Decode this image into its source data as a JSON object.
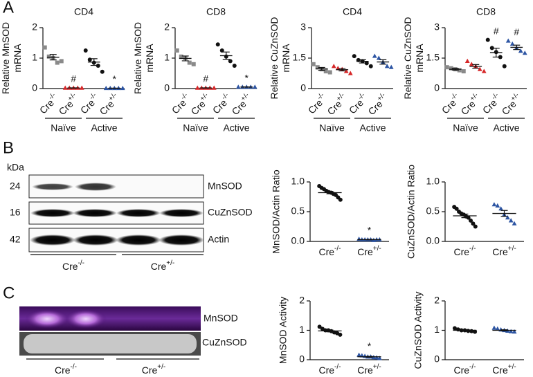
{
  "panels": [
    "A",
    "B",
    "C"
  ],
  "blot": {
    "unit": "kDa",
    "sizes": [
      "24",
      "16",
      "42"
    ],
    "names": [
      "MnSOD",
      "CuZnSOD",
      "Actin"
    ],
    "lanes": [
      "Cre-/-",
      "Cre+/-"
    ]
  },
  "zymogram": {
    "names": [
      "MnSOD",
      "CuZnSOD"
    ],
    "lanes": [
      "Cre-/-",
      "Cre+/-"
    ]
  },
  "chart_data": [
    {
      "type": "dotplot",
      "title": "CD4",
      "ylabel": [
        "Relative MnSOD",
        "mRNA"
      ],
      "categories": [
        "Cre-/-",
        "Cre+/-",
        "Cre-/-",
        "Cre+/-"
      ],
      "groups": [
        "Naïve",
        "Active"
      ],
      "colors": [
        "#8a8a8a",
        "#d62728",
        "#111111",
        "#2d55a3"
      ],
      "markers": [
        "square",
        "triangle",
        "circle",
        "triangle"
      ],
      "points": [
        [
          1.35,
          1.05,
          1.0,
          0.85,
          0.9
        ],
        [
          0.02,
          0.02,
          0.02,
          0.02,
          0.02
        ],
        [
          1.25,
          0.95,
          0.85,
          0.75,
          0.55
        ],
        [
          0.01,
          0.01,
          0.01,
          0.01,
          0.01
        ]
      ],
      "means": [
        1.03,
        0.02,
        0.87,
        0.01
      ],
      "sems": [
        0.09,
        0.003,
        0.11,
        0.002
      ],
      "annotations": [
        null,
        "#",
        null,
        "*"
      ],
      "ylim": [
        0,
        2
      ],
      "yticks": [
        0,
        1,
        2
      ]
    },
    {
      "type": "dotplot",
      "title": "CD8",
      "ylabel": [
        "Relative MnSOD",
        "mRNA"
      ],
      "categories": [
        "Cre-/-",
        "Cre+/-",
        "Cre-/-",
        "Cre+/-"
      ],
      "groups": [
        "Naïve",
        "Active"
      ],
      "colors": [
        "#8a8a8a",
        "#d62728",
        "#111111",
        "#2d55a3"
      ],
      "markers": [
        "square",
        "triangle",
        "circle",
        "triangle"
      ],
      "points": [
        [
          1.25,
          1.05,
          1.0,
          0.85,
          0.8
        ],
        [
          0.02,
          0.02,
          0.02,
          0.02,
          0.02
        ],
        [
          1.45,
          1.25,
          1.05,
          0.9,
          0.75
        ],
        [
          0.05,
          0.05,
          0.05,
          0.05,
          0.05
        ]
      ],
      "means": [
        0.99,
        0.02,
        1.08,
        0.05
      ],
      "sems": [
        0.08,
        0.003,
        0.12,
        0.005
      ],
      "annotations": [
        null,
        "#",
        null,
        "*"
      ],
      "ylim": [
        0,
        2
      ],
      "yticks": [
        0,
        1,
        2
      ]
    },
    {
      "type": "dotplot",
      "title": "CD4",
      "ylabel": [
        "Relative CuZnSOD",
        "mRNA"
      ],
      "categories": [
        "Cre-/-",
        "Cre+/-",
        "Cre-/-",
        "Cre+/-"
      ],
      "groups": [
        "Naïve",
        "Active"
      ],
      "colors": [
        "#8a8a8a",
        "#d62728",
        "#111111",
        "#2d55a3"
      ],
      "markers": [
        "square",
        "triangle",
        "circle",
        "triangle"
      ],
      "points": [
        [
          1.2,
          1.05,
          0.95,
          0.85,
          0.8
        ],
        [
          1.1,
          1.0,
          0.95,
          0.85,
          0.75
        ],
        [
          1.6,
          1.4,
          1.35,
          1.25,
          1.1
        ],
        [
          1.6,
          1.5,
          1.3,
          1.1,
          1.05
        ]
      ],
      "means": [
        0.97,
        0.93,
        1.34,
        1.31
      ],
      "sems": [
        0.07,
        0.06,
        0.08,
        0.11
      ],
      "annotations": [
        null,
        null,
        null,
        null
      ],
      "ylim": [
        0,
        3
      ],
      "yticks": [
        0,
        1.5,
        3
      ]
    },
    {
      "type": "dotplot",
      "title": "CD8",
      "ylabel": [
        "Relative CuZnSOD",
        "mRNA"
      ],
      "categories": [
        "Cre-/-",
        "Cre+/-",
        "Cre-/-",
        "Cre+/-"
      ],
      "groups": [
        "Naïve",
        "Active"
      ],
      "colors": [
        "#8a8a8a",
        "#d62728",
        "#111111",
        "#2d55a3"
      ],
      "markers": [
        "square",
        "triangle",
        "circle",
        "triangle"
      ],
      "points": [
        [
          1.05,
          1.0,
          0.95,
          0.9,
          0.85
        ],
        [
          1.35,
          1.2,
          1.1,
          0.95,
          0.85
        ],
        [
          2.4,
          2.0,
          1.8,
          1.55,
          1.1
        ],
        [
          2.35,
          2.2,
          2.0,
          1.85,
          1.75
        ]
      ],
      "means": [
        0.95,
        1.09,
        1.77,
        2.03
      ],
      "sems": [
        0.04,
        0.09,
        0.22,
        0.11
      ],
      "annotations": [
        null,
        null,
        "#",
        "#"
      ],
      "ylim": [
        0,
        3
      ],
      "yticks": [
        0,
        1.5,
        3
      ]
    },
    {
      "type": "dotplot",
      "ylabel": [
        "MnSOD/Actin Ratio"
      ],
      "categories": [
        "Cre-/-",
        "Cre+/-"
      ],
      "colors": [
        "#111111",
        "#2d55a3"
      ],
      "markers": [
        "circle",
        "triangle"
      ],
      "points": [
        [
          0.93,
          0.9,
          0.88,
          0.85,
          0.83,
          0.82,
          0.8,
          0.78,
          0.74,
          0.7
        ],
        [
          0.04,
          0.03,
          0.03,
          0.03,
          0.03,
          0.02,
          0.03,
          0.03
        ]
      ],
      "means": [
        0.82,
        0.03
      ],
      "sems": [
        0.02,
        0.003
      ],
      "annotations": [
        null,
        "*"
      ],
      "ylim": [
        0,
        1
      ],
      "yticks": [
        {
          "value": 0,
          "label": "0.0"
        },
        {
          "value": 0.5,
          "label": "0.5"
        },
        {
          "value": 1,
          "label": "1.0"
        }
      ]
    },
    {
      "type": "dotplot",
      "ylabel": [
        "CuZnSOD/Actin Ratio"
      ],
      "categories": [
        "Cre-/-",
        "Cre+/-"
      ],
      "colors": [
        "#111111",
        "#2d55a3"
      ],
      "markers": [
        "circle",
        "triangle"
      ],
      "points": [
        [
          0.58,
          0.55,
          0.5,
          0.47,
          0.45,
          0.42,
          0.4,
          0.35,
          0.3,
          0.25
        ],
        [
          0.62,
          0.6,
          0.55,
          0.45,
          0.4,
          0.35,
          0.3
        ]
      ],
      "means": [
        0.43,
        0.47
      ],
      "sems": [
        0.03,
        0.05
      ],
      "annotations": [
        null,
        null
      ],
      "ylim": [
        0,
        1
      ],
      "yticks": [
        {
          "value": 0,
          "label": "0.0"
        },
        {
          "value": 0.5,
          "label": "0.5"
        },
        {
          "value": 1,
          "label": "1.0"
        }
      ]
    },
    {
      "type": "dotplot",
      "ylabel": [
        "MnSOD Activity"
      ],
      "categories": [
        "Cre-/-",
        "Cre+/-"
      ],
      "colors": [
        "#111111",
        "#2d55a3"
      ],
      "markers": [
        "circle",
        "triangle"
      ],
      "points": [
        [
          1.12,
          1.05,
          1.0,
          1.0,
          0.97,
          0.93,
          0.9,
          0.85
        ],
        [
          0.16,
          0.14,
          0.12,
          0.1,
          0.1,
          0.08,
          0.07,
          0.05
        ]
      ],
      "means": [
        0.98,
        0.1
      ],
      "sems": [
        0.03,
        0.013
      ],
      "annotations": [
        null,
        "*"
      ],
      "ylim": [
        0,
        2
      ],
      "yticks": [
        0,
        1,
        2
      ]
    },
    {
      "type": "dotplot",
      "ylabel": [
        "CuZnSOD Activity"
      ],
      "categories": [
        "Cre-/-",
        "Cre+/-"
      ],
      "colors": [
        "#111111",
        "#2d55a3"
      ],
      "markers": [
        "circle",
        "triangle"
      ],
      "points": [
        [
          1.07,
          1.03,
          1.0,
          1.0,
          0.98,
          0.97,
          0.95
        ],
        [
          1.08,
          1.05,
          1.02,
          1.0,
          0.98,
          0.96,
          0.95
        ]
      ],
      "means": [
        1.0,
        1.0
      ],
      "sems": [
        0.015,
        0.017
      ],
      "annotations": [
        null,
        null
      ],
      "ylim": [
        0,
        2
      ],
      "yticks": [
        0,
        1,
        2
      ]
    }
  ]
}
